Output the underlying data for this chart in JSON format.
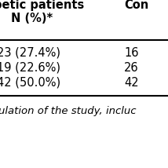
{
  "header_col1_line1": "betic patients",
  "header_col1_line2": "N (%)*",
  "header_col2": "Con",
  "rows": [
    [
      "23 (27.4%)",
      "16"
    ],
    [
      "19 (22.6%)",
      "26"
    ],
    [
      "42 (50.0%)",
      "42"
    ]
  ],
  "footnote": "ulation of the study, incluc",
  "bg_color": "#ffffff",
  "text_color": "#000000",
  "font_size": 10.5,
  "header_font_size": 10.5
}
